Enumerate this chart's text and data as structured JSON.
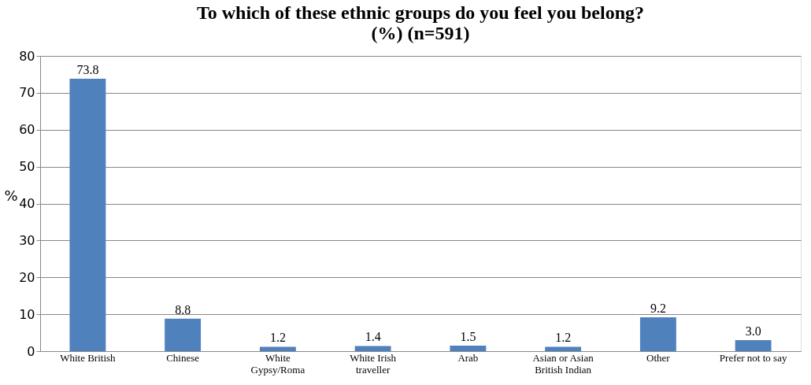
{
  "chart_data": {
    "type": "bar",
    "title": "To which of these ethnic groups do you feel you belong?\n(%) (n=591)",
    "ylabel": "%",
    "categories": [
      "White British",
      "Chinese",
      "White\nGypsy/Roma",
      "White Irish\ntraveller",
      "Arab",
      "Asian or Asian\nBritish Indian",
      "Other",
      "Prefer not to say"
    ],
    "values": [
      73.8,
      8.8,
      1.2,
      1.4,
      1.5,
      1.2,
      9.2,
      3.0
    ],
    "value_labels": [
      "73.8",
      "8.8",
      "1.2",
      "1.4",
      "1.5",
      "1.2",
      "9.2",
      "3.0"
    ],
    "color": "#4f81bd",
    "ylim": [
      0,
      80
    ],
    "yticks": [
      0,
      10,
      20,
      30,
      40,
      50,
      60,
      70,
      80
    ],
    "grid": "y"
  }
}
